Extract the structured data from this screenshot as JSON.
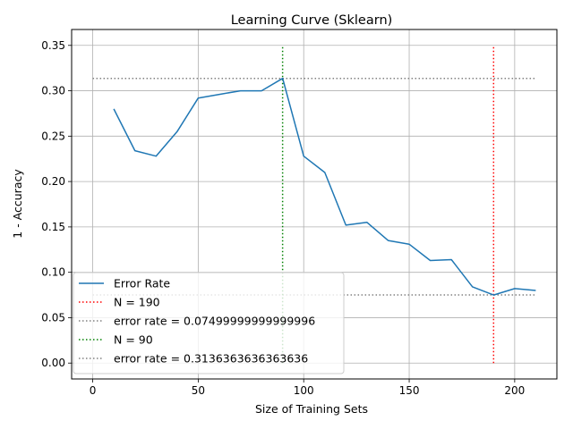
{
  "chart_data": {
    "type": "line",
    "title": "Learning Curve (Sklearn)",
    "xlabel": "Size of Training Sets",
    "ylabel": "1 - Accuracy",
    "xlim": [
      -10,
      220
    ],
    "ylim": [
      -0.0175,
      0.3675
    ],
    "xticks": [
      0,
      50,
      100,
      150,
      200
    ],
    "xtick_labels": [
      "0",
      "50",
      "100",
      "150",
      "200"
    ],
    "yticks": [
      0.0,
      0.05,
      0.1,
      0.15,
      0.2,
      0.25,
      0.3,
      0.35
    ],
    "ytick_labels": [
      "0.00",
      "0.05",
      "0.10",
      "0.15",
      "0.20",
      "0.25",
      "0.30",
      "0.35"
    ],
    "grid": true,
    "legend_position": "lower-left",
    "series": [
      {
        "name": "Error Rate",
        "color": "#1f77b4",
        "style": "solid",
        "x": [
          10,
          20,
          30,
          40,
          50,
          60,
          70,
          80,
          90,
          100,
          110,
          120,
          130,
          140,
          150,
          160,
          170,
          180,
          190,
          200,
          210
        ],
        "y": [
          0.28,
          0.234,
          0.228,
          0.255,
          0.292,
          0.296,
          0.3,
          0.3,
          0.3136,
          0.228,
          0.21,
          0.152,
          0.155,
          0.135,
          0.131,
          0.113,
          0.114,
          0.084,
          0.075,
          0.082,
          0.08
        ]
      }
    ],
    "reference_lines": [
      {
        "name": "N = 190",
        "orientation": "vertical",
        "x": 190,
        "y_range": [
          0,
          0.35
        ],
        "color": "#ff0000",
        "style": "dotted"
      },
      {
        "name": "error rate = 0.07499999999999996",
        "orientation": "horizontal",
        "y": 0.075,
        "x_range": [
          0,
          210
        ],
        "color": "#808080",
        "style": "dotted"
      },
      {
        "name": "N = 90",
        "orientation": "vertical",
        "x": 90,
        "y_range": [
          0,
          0.35
        ],
        "color": "#008000",
        "style": "dotted"
      },
      {
        "name": "error rate = 0.3136363636363636",
        "orientation": "horizontal",
        "y": 0.3136,
        "x_range": [
          0,
          210
        ],
        "color": "#808080",
        "style": "dotted"
      }
    ],
    "legend": [
      {
        "label": "Error Rate",
        "color": "#1f77b4",
        "style": "solid"
      },
      {
        "label": "N = 190",
        "color": "#ff0000",
        "style": "dotted"
      },
      {
        "label": "error rate = 0.07499999999999996",
        "color": "#808080",
        "style": "dotted"
      },
      {
        "label": "N = 90",
        "color": "#008000",
        "style": "dotted"
      },
      {
        "label": "error rate = 0.3136363636363636",
        "color": "#808080",
        "style": "dotted"
      }
    ]
  }
}
